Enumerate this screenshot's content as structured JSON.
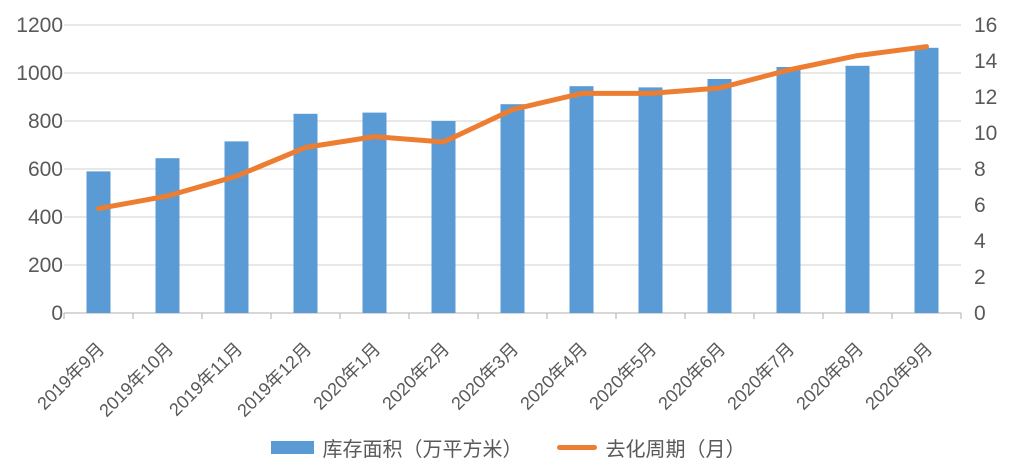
{
  "chart_data": {
    "type": "bar+line-combo",
    "title": "",
    "categories": [
      "2019年9月",
      "2019年10月",
      "2019年11月",
      "2019年12月",
      "2020年1月",
      "2020年2月",
      "2020年3月",
      "2020年4月",
      "2020年5月",
      "2020年6月",
      "2020年7月",
      "2020年8月",
      "2020年9月"
    ],
    "series": [
      {
        "name": "库存面积（万平方米）",
        "type": "bar",
        "axis": "left",
        "color": "#5B9BD5",
        "values": [
          590,
          645,
          715,
          830,
          835,
          800,
          870,
          945,
          940,
          975,
          1025,
          1030,
          1105
        ]
      },
      {
        "name": "去化周期（月）",
        "type": "line",
        "axis": "right",
        "color": "#ED7D31",
        "values": [
          5.8,
          6.5,
          7.6,
          9.2,
          9.8,
          9.5,
          11.3,
          12.2,
          12.2,
          12.5,
          13.5,
          14.3,
          14.8
        ]
      }
    ],
    "left_axis": {
      "min": 0,
      "max": 1200,
      "step": 200,
      "ticks": [
        "1200",
        "1000",
        "800",
        "600",
        "400",
        "200",
        "0"
      ]
    },
    "right_axis": {
      "min": 0,
      "max": 16,
      "step": 2,
      "ticks": [
        "16",
        "14",
        "12",
        "10",
        "8",
        "6",
        "4",
        "2",
        "0"
      ]
    },
    "grid": true,
    "legend_position": "bottom",
    "colors": {
      "grid_line": "#D9D9D9",
      "axis_line": "#BFBFBF",
      "tick_text": "#595959"
    }
  }
}
